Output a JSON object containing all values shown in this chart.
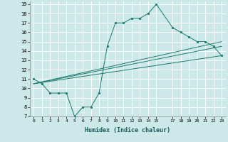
{
  "xlabel": "Humidex (Indice chaleur)",
  "bg_color": "#cce8e8",
  "grid_color": "#ffffff",
  "line_color": "#1a7a6a",
  "xlim": [
    -0.5,
    23.5
  ],
  "ylim": [
    7,
    19.3
  ],
  "xticks": [
    0,
    1,
    2,
    3,
    4,
    5,
    6,
    7,
    8,
    9,
    10,
    11,
    12,
    13,
    14,
    15,
    17,
    18,
    19,
    20,
    21,
    22,
    23
  ],
  "yticks": [
    7,
    8,
    9,
    10,
    11,
    12,
    13,
    14,
    15,
    16,
    17,
    18,
    19
  ],
  "series": [
    {
      "x": [
        0,
        1,
        2,
        3,
        4,
        5,
        6,
        7,
        8,
        9,
        10,
        11,
        12,
        13,
        14,
        15,
        17,
        18,
        19,
        20,
        21,
        22,
        23
      ],
      "y": [
        11,
        10.5,
        9.5,
        9.5,
        9.5,
        7,
        8,
        8,
        9.5,
        14.5,
        17,
        17,
        17.5,
        17.5,
        18,
        19,
        16.5,
        16,
        15.5,
        15,
        15,
        14.5,
        13.5
      ],
      "markersize": 2.0
    },
    {
      "x": [
        0,
        23
      ],
      "y": [
        10.5,
        15.0
      ],
      "markersize": 0
    },
    {
      "x": [
        0,
        23
      ],
      "y": [
        10.5,
        13.5
      ],
      "markersize": 0
    },
    {
      "x": [
        0,
        23
      ],
      "y": [
        10.5,
        14.5
      ],
      "markersize": 0
    }
  ]
}
